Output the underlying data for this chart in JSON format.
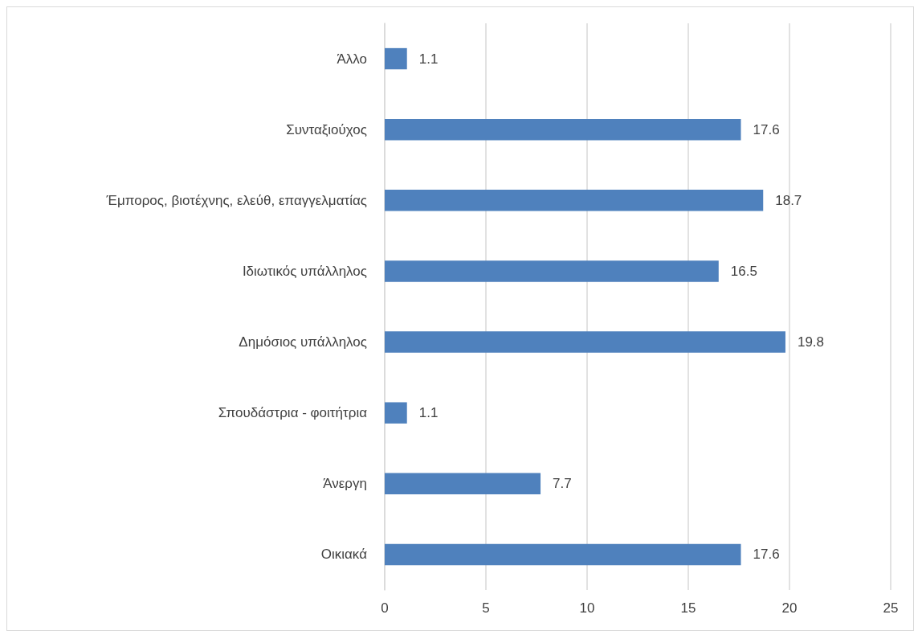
{
  "chart_data": {
    "type": "bar",
    "orientation": "horizontal",
    "categories": [
      "Άλλο",
      "Συνταξιούχος",
      "Έμπορος, βιοτέχνης, ελεύθ, επαγγελματίας",
      "Ιδιωτικός υπάλληλος",
      "Δημόσιος υπάλληλος",
      "Σπουδάστρια - φοιτήτρια",
      "Άνεργη",
      "Οικιακά"
    ],
    "values": [
      1.1,
      17.6,
      18.7,
      16.5,
      19.8,
      1.1,
      7.7,
      17.6
    ],
    "color": "#4f81bd",
    "xlim": [
      0,
      25
    ],
    "xticks": [
      0,
      5,
      10,
      15,
      20,
      25
    ],
    "grid": "x",
    "data_labels": true
  }
}
